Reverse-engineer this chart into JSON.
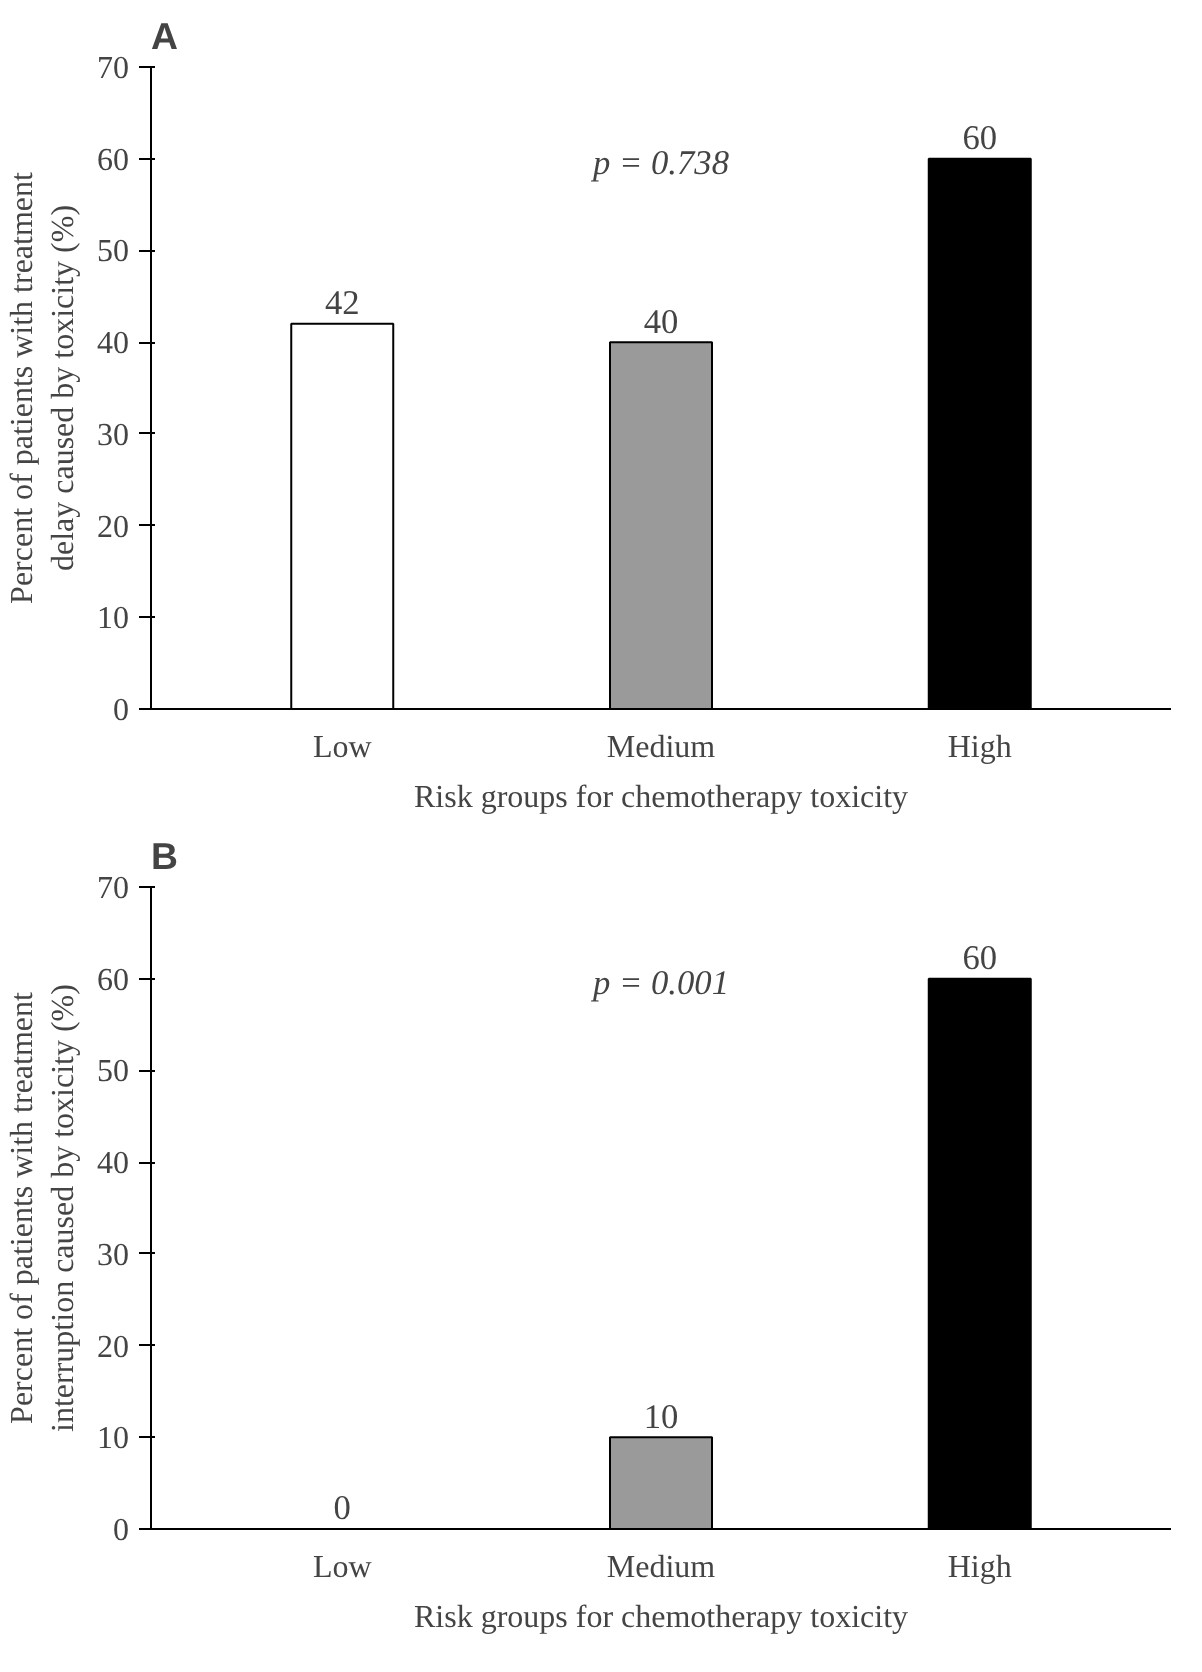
{
  "chart_data": [
    {
      "type": "bar",
      "title": "A",
      "xlabel": "Risk groups for chemotherapy toxicity",
      "ylabel": "Percent of patients with treatment delay caused by toxicity (%)",
      "categories": [
        "Low",
        "Medium",
        "High"
      ],
      "values": [
        42,
        40,
        60
      ],
      "colors": [
        "#ffffff",
        "#9a9a9a",
        "#000000"
      ],
      "ylim": [
        0,
        70
      ],
      "yticks": [
        0,
        10,
        20,
        30,
        40,
        50,
        60,
        70
      ],
      "data_labels": true,
      "annotations": [
        "p = 0.738"
      ]
    },
    {
      "type": "bar",
      "title": "B",
      "xlabel": "Risk groups for chemotherapy toxicity",
      "ylabel": "Percent of patients with treatment interruption caused by toxicity (%)",
      "categories": [
        "Low",
        "Medium",
        "High"
      ],
      "values": [
        0,
        10,
        60
      ],
      "colors": [
        null,
        "#9a9a9a",
        "#000000"
      ],
      "ylim": [
        0,
        70
      ],
      "yticks": [
        0,
        10,
        20,
        30,
        40,
        50,
        60,
        70
      ],
      "data_labels": true,
      "annotations": [
        "p = 0.001"
      ]
    }
  ]
}
